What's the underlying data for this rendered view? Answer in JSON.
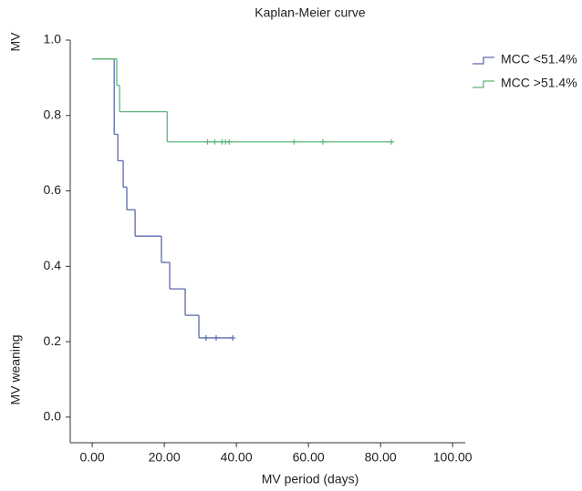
{
  "chart_data": {
    "type": "kaplan-meier",
    "title": "Kaplan-Meier curve",
    "x_label": "MV period (days)",
    "y_label_top": "MV",
    "y_label": "MV weaning",
    "xlim": [
      -6.1,
      103.5
    ],
    "ylim": [
      -0.068,
      1.0
    ],
    "xticks": [
      {
        "value": 0,
        "label": "0.00"
      },
      {
        "value": 20,
        "label": "20.00"
      },
      {
        "value": 40,
        "label": "40.00"
      },
      {
        "value": 60,
        "label": "60.00"
      },
      {
        "value": 80,
        "label": "80.00"
      },
      {
        "value": 100,
        "label": "100.00"
      }
    ],
    "yticks": [
      {
        "value": 0,
        "label": "0.0"
      },
      {
        "value": 0.2,
        "label": "0.2"
      },
      {
        "value": 0.4,
        "label": "0.4"
      },
      {
        "value": 0.6,
        "label": "0.6"
      },
      {
        "value": 0.8,
        "label": "0.8"
      },
      {
        "value": 1.0,
        "label": "1.0"
      }
    ],
    "legend": "upper right",
    "series": [
      {
        "name": "MCC <51.4%",
        "color": "#5a6aae",
        "x": [
          0,
          6.1,
          7.1,
          8.6,
          9.6,
          11.9,
          19.2,
          21.5,
          25.8,
          29.6
        ],
        "values": [
          0.95,
          0.75,
          0.68,
          0.61,
          0.55,
          0.48,
          0.41,
          0.34,
          0.27,
          0.21
        ],
        "censor_x": [
          31.6,
          34.4,
          39
        ],
        "censor_values": [
          0.21,
          0.21,
          0.21
        ]
      },
      {
        "name": "MCC >51.4%",
        "color": "#5cb878",
        "x": [
          0,
          6.8,
          7.6,
          20.8
        ],
        "values": [
          0.95,
          0.88,
          0.81,
          0.73
        ],
        "censor_x": [
          32,
          34,
          36,
          37,
          38,
          56,
          64,
          83
        ],
        "censor_values": [
          0.73,
          0.73,
          0.73,
          0.73,
          0.73,
          0.73,
          0.73,
          0.73
        ]
      }
    ]
  }
}
